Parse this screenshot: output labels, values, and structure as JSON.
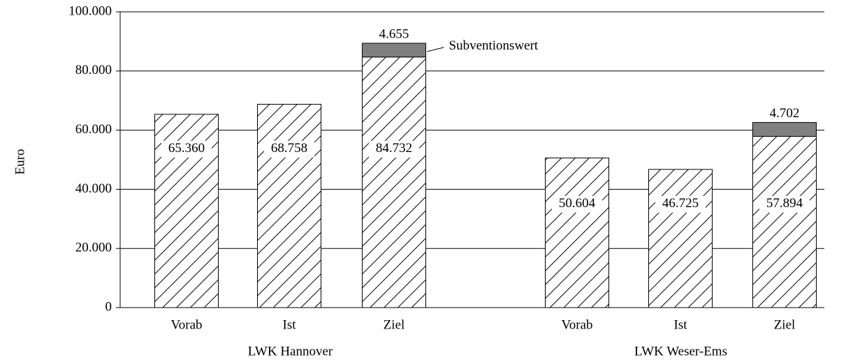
{
  "chart_data": {
    "type": "stacked_bar",
    "y_label": "Euro",
    "categories": [
      "Vorab",
      "Ist",
      "Ziel",
      "Vorab",
      "Ist",
      "Ziel"
    ],
    "group_labels": [
      "LWK Hannover",
      "LWK Weser-Ems"
    ],
    "series": [
      {
        "color": "#000000",
        "pattern": "hatch",
        "values": [
          65360,
          68758,
          84732,
          50604,
          46725,
          57894
        ],
        "value_labels": [
          "65.360",
          "68.758",
          "84.732",
          "50.604",
          "46.725",
          "57.894"
        ]
      },
      {
        "name": "Subventionswert",
        "color": "#808080",
        "values": [
          null,
          null,
          4655,
          null,
          null,
          4702
        ],
        "value_labels": [
          null,
          null,
          "4.655",
          null,
          null,
          "4.702"
        ]
      }
    ],
    "ylim": [
      0,
      100000
    ],
    "yticks": [
      0,
      {
        "value": 20000,
        "label": "20.000"
      },
      {
        "value": 40000,
        "label": "40.000"
      },
      {
        "value": 60000,
        "label": "60.000"
      },
      {
        "value": 80000,
        "label": "80.000"
      },
      {
        "value": 100000,
        "label": "100.000"
      }
    ],
    "grid": true
  }
}
